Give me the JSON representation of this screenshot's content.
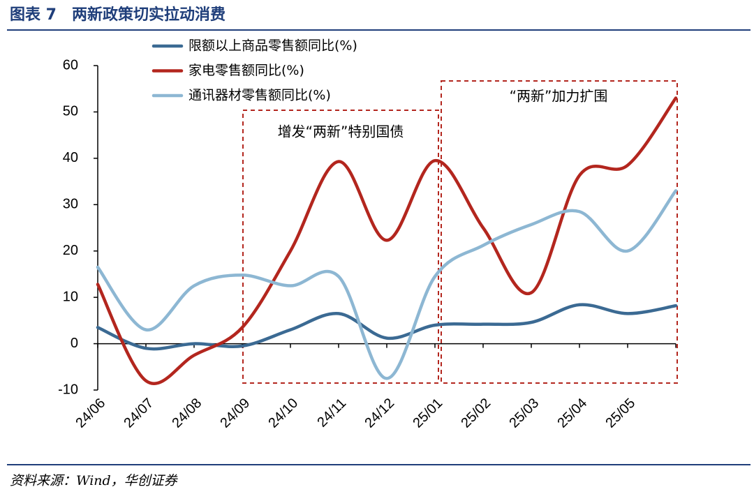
{
  "header": {
    "title": "图表 7　两新政策切实拉动消费"
  },
  "chart_data": {
    "type": "line",
    "categories": [
      "24/06",
      "24/07",
      "24/08",
      "24/09",
      "24/10",
      "24/11",
      "24/12",
      "25/01",
      "25/02",
      "25/03",
      "25/04",
      "25/05",
      null
    ],
    "series": [
      {
        "name": "限额以上商品零售额同比(%)",
        "color": "#3b6a93",
        "values": [
          3.5,
          -1,
          0,
          -0.5,
          3,
          6.5,
          1.2,
          4,
          4.2,
          4.6,
          8.4,
          6.5,
          8.2
        ]
      },
      {
        "name": "家电零售额同比(%)",
        "color": "#b3261e",
        "values": [
          12.8,
          -8,
          -2.5,
          3.5,
          20,
          39.3,
          22.3,
          39.5,
          25,
          11,
          36.3,
          38.5,
          53
        ]
      },
      {
        "name": "通讯器材零售额同比(%)",
        "color": "#8db7d3",
        "values": [
          16.5,
          3,
          12.5,
          14.8,
          12.5,
          14.5,
          -7.5,
          14.5,
          21.2,
          25.7,
          28.5,
          20,
          33
        ]
      }
    ],
    "ylim": [
      -10,
      60
    ],
    "yticks": [
      -10,
      0,
      10,
      20,
      30,
      40,
      50,
      60
    ],
    "annotations": [
      "增发“两新”特别国债",
      "“两新”加力扩围"
    ]
  },
  "footer": {
    "source": "资料来源：Wind，华创证券"
  }
}
